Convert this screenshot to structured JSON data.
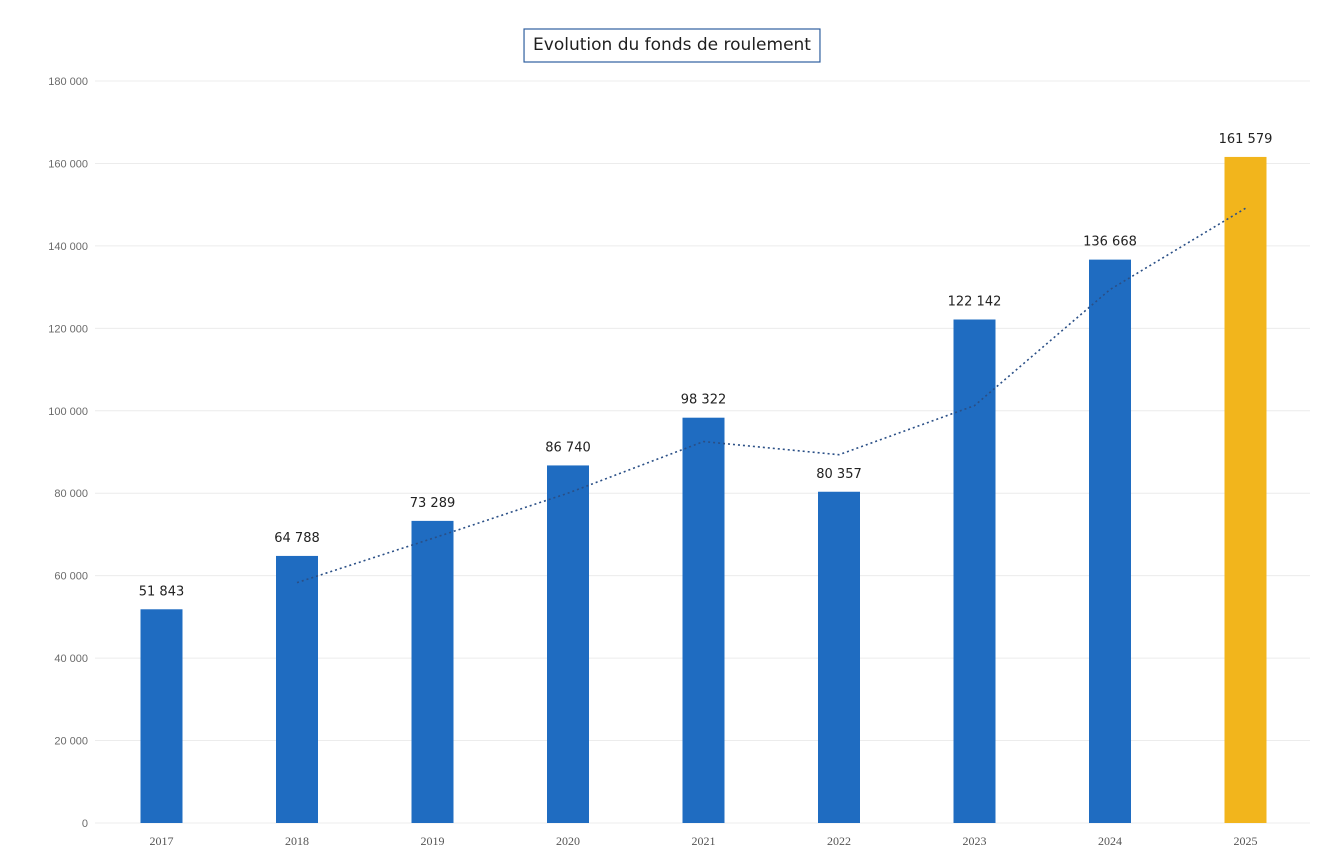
{
  "chart_data": {
    "type": "bar",
    "title": "Evolution du fonds de roulement",
    "categories": [
      "2017",
      "2018",
      "2019",
      "2020",
      "2021",
      "2022",
      "2023",
      "2024",
      "2025"
    ],
    "values": [
      51843,
      64788,
      73289,
      86740,
      98322,
      80357,
      122142,
      136668,
      161579
    ],
    "value_labels": [
      "51 843",
      "64 788",
      "73 289",
      "86 740",
      "98 322",
      "80 357",
      "122 142",
      "136 668",
      "161 579"
    ],
    "y_ticks": [
      "0",
      "20 000",
      "40 000",
      "60 000",
      "80 000",
      "100 000",
      "120 000",
      "140 000",
      "160 000",
      "180 000"
    ],
    "ylim": [
      0,
      180000
    ],
    "xlabel": "",
    "ylabel": "",
    "grid": true,
    "legend": "none",
    "trendline": {
      "type": "moving-average",
      "period": 2,
      "style": "dotted"
    },
    "colors": {
      "bar": "#1f6cc1",
      "highlight_bar": "#f2b51c",
      "highlight_category": "2025",
      "trendline": "#2a4f86"
    }
  }
}
